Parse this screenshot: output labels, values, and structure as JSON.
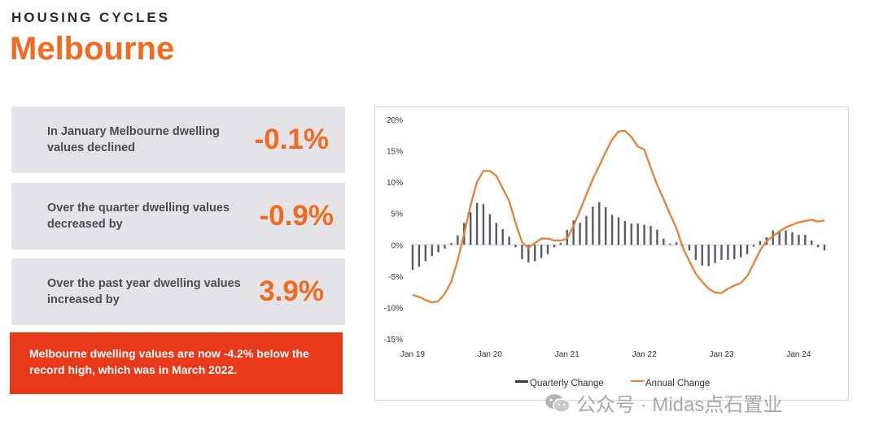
{
  "header": {
    "eyebrow": "HOUSING CYCLES",
    "title": "Melbourne"
  },
  "stats": [
    {
      "text": "In January Melbourne dwelling values declined",
      "value": "-0.1%"
    },
    {
      "text": "Over the quarter dwelling values decreased by",
      "value": "-0.9%"
    },
    {
      "text": "Over the past year dwelling values increased by",
      "value": "3.9%"
    }
  ],
  "banner": {
    "text": "Melbourne dwelling values are now -4.2% below the record high, which was in March 2022."
  },
  "colors": {
    "accent": "#f26a1f",
    "banner": "#e8391b",
    "card": "#e4e4e8",
    "bar": "#5a5866",
    "line": "#ef7a2c"
  },
  "watermark": {
    "icon": "wechat-icon",
    "text": "公众号 · Midas点石置业"
  },
  "chart_data": {
    "type": "bar",
    "title": "",
    "xlabel": "",
    "ylabel": "",
    "ylim": [
      -15,
      20
    ],
    "y_ticks": [
      "20%",
      "15%",
      "10%",
      "5%",
      "0%",
      "-5%",
      "-10%",
      "-15%"
    ],
    "x_ticks": [
      "Jan 19",
      "Jan 20",
      "Jan 21",
      "Jan 22",
      "Jan 23",
      "Jan 24"
    ],
    "grid": false,
    "legend_position": "bottom",
    "series": [
      {
        "name": "Quarterly Change",
        "type": "bar",
        "color": "#3a3f4a",
        "values": [
          -4.0,
          -3.5,
          -2.6,
          -1.8,
          -1.2,
          -0.6,
          0.3,
          1.5,
          3.5,
          5.2,
          6.7,
          6.5,
          4.9,
          3.5,
          2.5,
          1.3,
          -0.4,
          -2.3,
          -2.8,
          -2.6,
          -2.1,
          -1.5,
          -0.4,
          0.3,
          2.4,
          3.9,
          3.5,
          4.6,
          6.1,
          6.8,
          6.0,
          4.8,
          4.4,
          3.8,
          3.4,
          3.4,
          3.2,
          3.0,
          2.4,
          1.0,
          0.2,
          0.4,
          -0.1,
          -0.9,
          -2.4,
          -3.3,
          -3.4,
          -2.9,
          -2.4,
          -2.4,
          -2.3,
          -2.0,
          -1.5,
          -0.3,
          0.6,
          1.2,
          2.3,
          2.3,
          2.3,
          2.0,
          1.6,
          1.6,
          0.7,
          -0.4,
          -0.9
        ]
      },
      {
        "name": "Annual Change",
        "type": "line",
        "color": "#ef7a2c",
        "values": [
          -8.0,
          -8.3,
          -8.8,
          -9.2,
          -9.0,
          -7.8,
          -5.9,
          -2.5,
          1.8,
          6.3,
          10.0,
          11.8,
          11.8,
          11.0,
          9.0,
          7.0,
          3.5,
          0.4,
          -0.5,
          0.3,
          1.0,
          1.0,
          0.7,
          0.7,
          1.0,
          3.0,
          5.5,
          8.0,
          10.5,
          12.6,
          14.8,
          16.8,
          18.1,
          18.2,
          17.2,
          15.7,
          15.2,
          12.3,
          9.6,
          7.3,
          4.9,
          2.6,
          -0.5,
          -2.6,
          -4.6,
          -5.9,
          -7.0,
          -7.6,
          -7.7,
          -7.0,
          -6.5,
          -6.1,
          -5.0,
          -3.0,
          -0.9,
          0.6,
          1.4,
          2.1,
          2.8,
          3.2,
          3.6,
          3.8,
          4.0,
          3.7,
          3.9
        ]
      }
    ]
  }
}
